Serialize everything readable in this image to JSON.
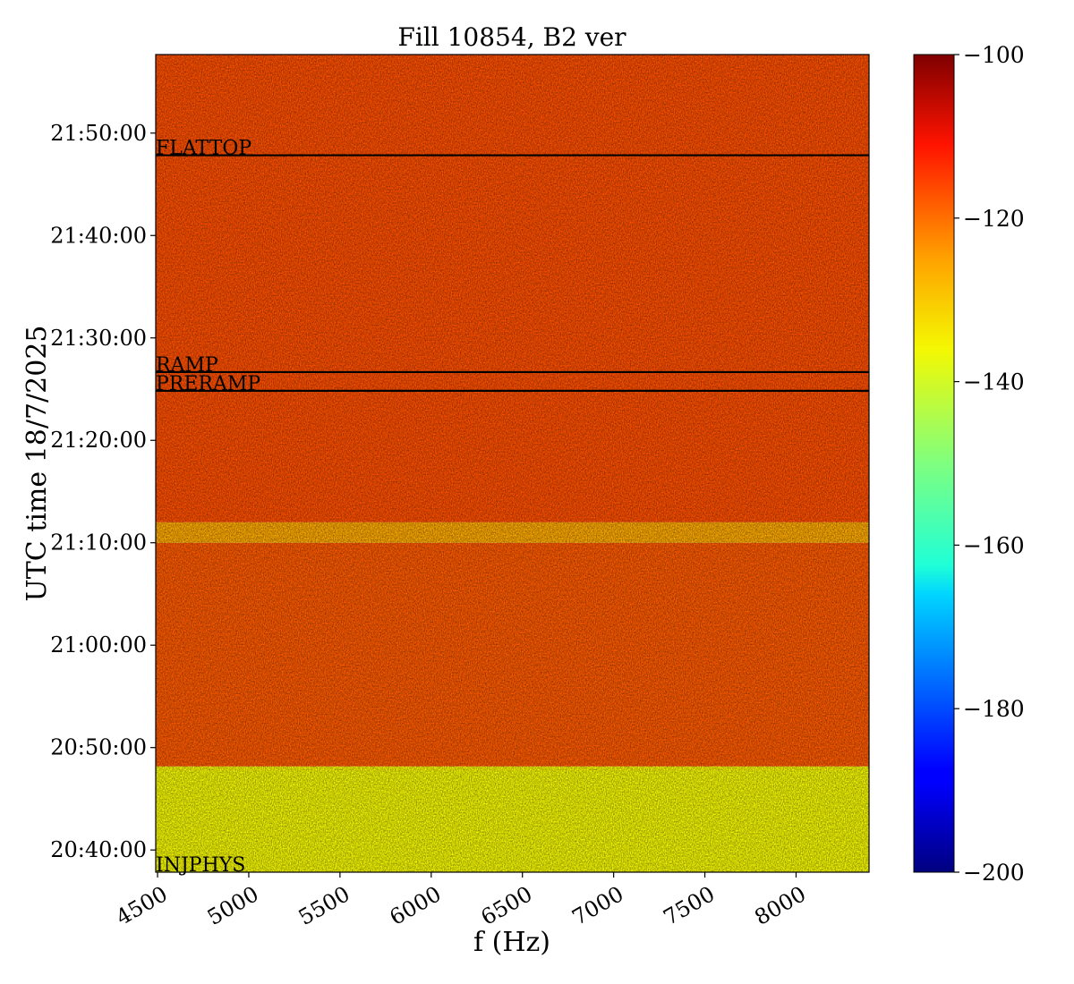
{
  "chart_data": {
    "type": "heatmap",
    "title": "Fill 10854, B2 ver",
    "xlabel": "f (Hz)",
    "ylabel": "UTC time 18/7/2025",
    "xlim": [
      4490,
      8400
    ],
    "ylim": [
      "20:37:50",
      "21:57:40"
    ],
    "x_ticks": [
      4500,
      5000,
      5500,
      6000,
      6500,
      7000,
      7500,
      8000
    ],
    "x_tick_labels": [
      "4500",
      "5000",
      "5500",
      "6000",
      "6500",
      "7000",
      "7500",
      "8000"
    ],
    "y_ticks": [
      "20:40:00",
      "20:50:00",
      "21:00:00",
      "21:10:00",
      "21:20:00",
      "21:30:00",
      "21:40:00",
      "21:50:00"
    ],
    "colorbar": {
      "colormap": "jet",
      "range": [
        -200,
        -100
      ],
      "ticks": [
        -200,
        -180,
        -160,
        -140,
        -120,
        -100
      ],
      "tick_labels": [
        "−200",
        "−180",
        "−160",
        "−140",
        "−120",
        "−100"
      ]
    },
    "approx_levels_dB": [
      {
        "from": "20:37:50",
        "to": "20:48:10",
        "level": -136
      },
      {
        "from": "20:48:10",
        "to": "21:10:00",
        "level": -118
      },
      {
        "from": "21:10:00",
        "to": "21:12:00",
        "level": -126
      },
      {
        "from": "21:12:00",
        "to": "21:57:40",
        "level": -117
      }
    ],
    "markers": [
      {
        "label": "FLATTOP",
        "time": "21:47:50"
      },
      {
        "label": "RAMP",
        "time": "21:26:40"
      },
      {
        "label": "PRERAMP",
        "time": "21:24:50"
      },
      {
        "label": "INJPHYS",
        "time": "20:37:50"
      }
    ],
    "grid": false
  }
}
